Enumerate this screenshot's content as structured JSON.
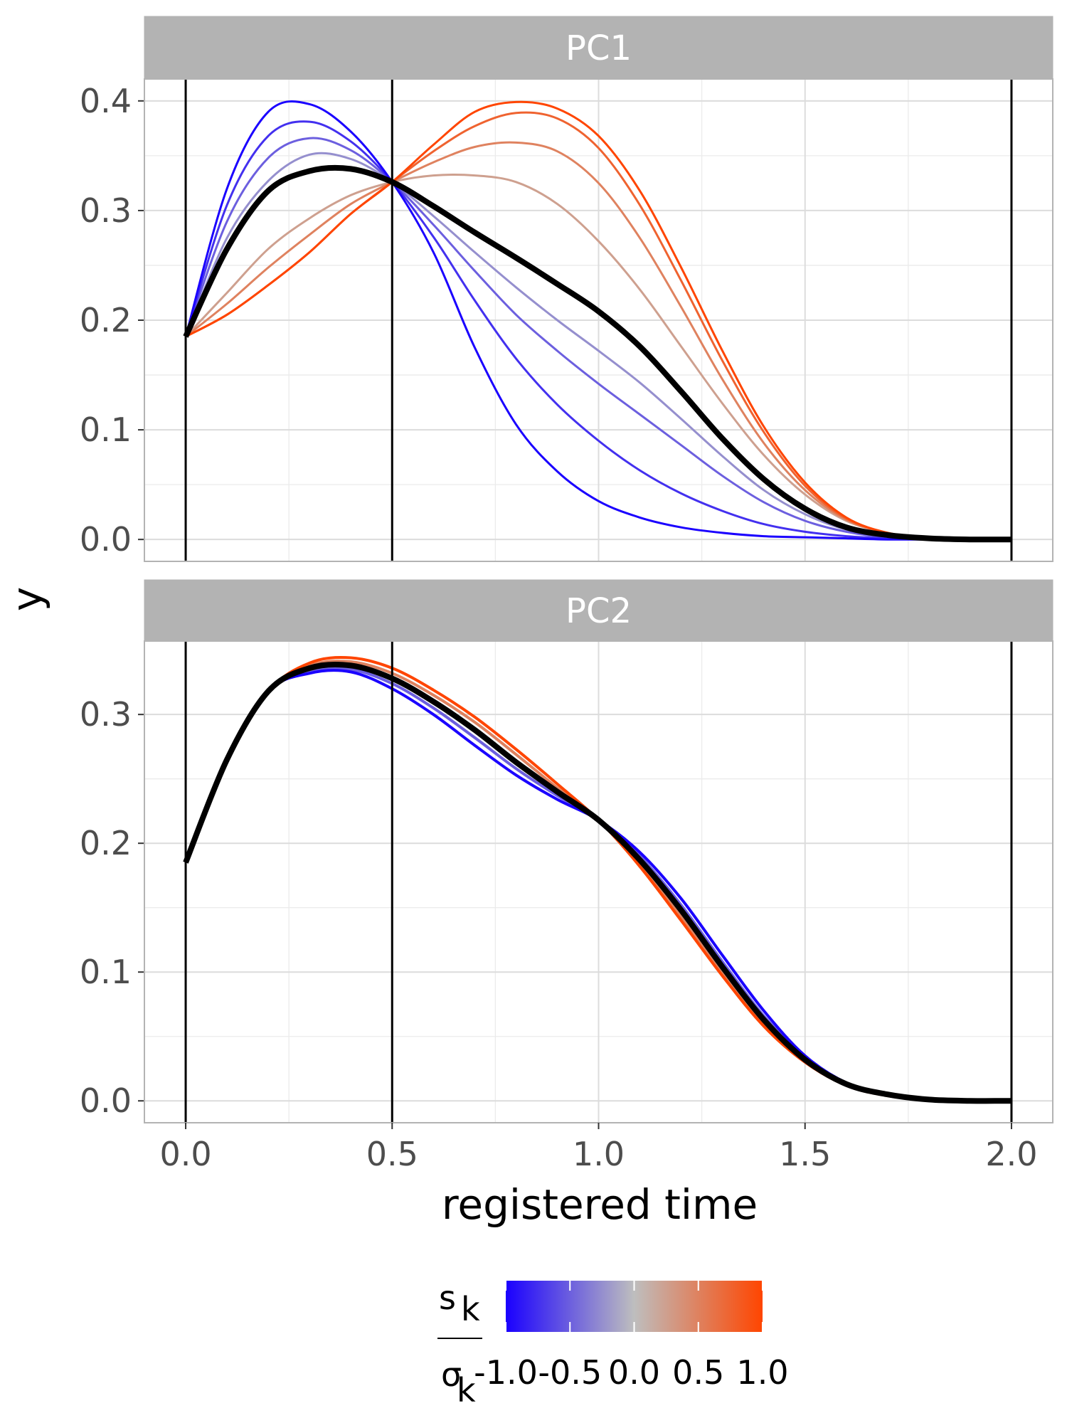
{
  "chart_data": {
    "type": "line",
    "xlabel": "registered time",
    "ylabel": "y",
    "x_ticks": [
      "0.0",
      "0.5",
      "1.0",
      "1.5",
      "2.0"
    ],
    "xlim": [
      -0.1,
      2.1
    ],
    "vlines": [
      0.0,
      0.5,
      2.0
    ],
    "grid": true,
    "colors": {
      "neg": "#1a00ff",
      "mid": "#bebebe",
      "pos": "#ff4500",
      "mean": "#000000",
      "strip_bg": "#b3b3b3"
    },
    "legend": {
      "position": "bottom",
      "title_numerator": "s",
      "title_numerator_sub": "k",
      "title_denominator": "σ",
      "title_denominator_sub": "k",
      "breaks": [
        "-1.0",
        "-0.5",
        "0.0",
        "0.5",
        "1.0"
      ],
      "range": [
        -1.0,
        1.0
      ]
    },
    "panels": [
      {
        "strip": "PC1",
        "ylim": [
          -0.02,
          0.42
        ],
        "y_ticks": [
          "0.0",
          "0.1",
          "0.2",
          "0.3",
          "0.4"
        ],
        "x": [
          0.0,
          0.1,
          0.2,
          0.3,
          0.4,
          0.5,
          0.6,
          0.7,
          0.8,
          0.9,
          1.0,
          1.1,
          1.2,
          1.3,
          1.4,
          1.5,
          1.6,
          1.7,
          1.8,
          1.9,
          2.0
        ],
        "mean": {
          "values": [
            0.185,
            0.265,
            0.318,
            0.336,
            0.338,
            0.326,
            0.304,
            0.28,
            0.257,
            0.233,
            0.208,
            0.176,
            0.135,
            0.092,
            0.055,
            0.028,
            0.011,
            0.004,
            0.001,
            0.0,
            0.0
          ]
        },
        "series": [
          {
            "score": -1.0,
            "values": [
              0.185,
              0.32,
              0.39,
              0.397,
              0.372,
              0.326,
              0.262,
              0.175,
              0.105,
              0.062,
              0.035,
              0.02,
              0.011,
              0.006,
              0.003,
              0.002,
              0.001,
              0.0,
              0.0,
              0.0,
              0.0
            ]
          },
          {
            "score": -0.75,
            "values": [
              0.185,
              0.305,
              0.368,
              0.381,
              0.363,
              0.326,
              0.276,
              0.218,
              0.165,
              0.123,
              0.09,
              0.063,
              0.042,
              0.026,
              0.014,
              0.007,
              0.003,
              0.001,
              0.0,
              0.0,
              0.0
            ]
          },
          {
            "score": -0.5,
            "values": [
              0.185,
              0.29,
              0.348,
              0.366,
              0.355,
              0.326,
              0.287,
              0.245,
              0.205,
              0.172,
              0.142,
              0.114,
              0.086,
              0.058,
              0.034,
              0.017,
              0.007,
              0.002,
              0.001,
              0.0,
              0.0
            ]
          },
          {
            "score": -0.25,
            "values": [
              0.185,
              0.275,
              0.327,
              0.351,
              0.347,
              0.326,
              0.295,
              0.262,
              0.23,
              0.2,
              0.172,
              0.143,
              0.11,
              0.076,
              0.045,
              0.023,
              0.009,
              0.003,
              0.001,
              0.0,
              0.0
            ]
          },
          {
            "score": 0.25,
            "values": [
              0.185,
              0.225,
              0.265,
              0.293,
              0.314,
              0.326,
              0.332,
              0.332,
              0.326,
              0.306,
              0.272,
              0.228,
              0.176,
              0.124,
              0.077,
              0.041,
              0.017,
              0.006,
              0.001,
              0.0,
              0.0
            ]
          },
          {
            "score": 0.5,
            "values": [
              0.185,
              0.215,
              0.248,
              0.278,
              0.306,
              0.326,
              0.344,
              0.358,
              0.362,
              0.354,
              0.325,
              0.275,
              0.212,
              0.146,
              0.088,
              0.045,
              0.018,
              0.006,
              0.001,
              0.0,
              0.0
            ]
          },
          {
            "score": 0.75,
            "values": [
              0.185,
              0.205,
              0.232,
              0.262,
              0.297,
              0.326,
              0.354,
              0.377,
              0.389,
              0.384,
              0.357,
              0.305,
              0.236,
              0.163,
              0.098,
              0.049,
              0.019,
              0.006,
              0.001,
              0.0,
              0.0
            ]
          },
          {
            "score": 1.0,
            "values": [
              0.185,
              0.205,
              0.232,
              0.262,
              0.297,
              0.326,
              0.36,
              0.39,
              0.399,
              0.393,
              0.368,
              0.318,
              0.248,
              0.172,
              0.103,
              0.052,
              0.02,
              0.006,
              0.001,
              0.0,
              0.0
            ]
          }
        ]
      },
      {
        "strip": "PC2",
        "ylim": [
          -0.017,
          0.357
        ],
        "y_ticks": [
          "0.0",
          "0.1",
          "0.2",
          "0.3"
        ],
        "x": [
          0.0,
          0.1,
          0.2,
          0.3,
          0.4,
          0.5,
          0.6,
          0.7,
          0.8,
          0.9,
          1.0,
          1.1,
          1.2,
          1.3,
          1.4,
          1.5,
          1.6,
          1.7,
          1.8,
          1.9,
          2.0
        ],
        "mean": {
          "values": [
            0.185,
            0.265,
            0.318,
            0.336,
            0.338,
            0.328,
            0.31,
            0.288,
            0.263,
            0.24,
            0.218,
            0.187,
            0.148,
            0.104,
            0.063,
            0.032,
            0.013,
            0.005,
            0.001,
            0.0,
            0.0
          ]
        },
        "series": [
          {
            "score": -1.0,
            "values": [
              0.185,
              0.265,
              0.318,
              0.332,
              0.333,
              0.32,
              0.3,
              0.276,
              0.253,
              0.234,
              0.218,
              0.193,
              0.157,
              0.113,
              0.07,
              0.035,
              0.014,
              0.005,
              0.001,
              0.0,
              0.0
            ]
          },
          {
            "score": -0.5,
            "values": [
              0.185,
              0.265,
              0.318,
              0.334,
              0.335,
              0.324,
              0.305,
              0.282,
              0.258,
              0.237,
              0.218,
              0.19,
              0.152,
              0.108,
              0.066,
              0.034,
              0.013,
              0.005,
              0.001,
              0.0,
              0.0
            ]
          },
          {
            "score": 0.5,
            "values": [
              0.185,
              0.265,
              0.318,
              0.338,
              0.341,
              0.332,
              0.315,
              0.294,
              0.269,
              0.243,
              0.218,
              0.184,
              0.143,
              0.1,
              0.06,
              0.031,
              0.012,
              0.004,
              0.001,
              0.0,
              0.0
            ]
          },
          {
            "score": 1.0,
            "values": [
              0.185,
              0.265,
              0.318,
              0.34,
              0.344,
              0.336,
              0.319,
              0.298,
              0.273,
              0.246,
              0.218,
              0.182,
              0.14,
              0.097,
              0.058,
              0.03,
              0.012,
              0.004,
              0.001,
              0.0,
              0.0
            ]
          }
        ]
      }
    ]
  }
}
